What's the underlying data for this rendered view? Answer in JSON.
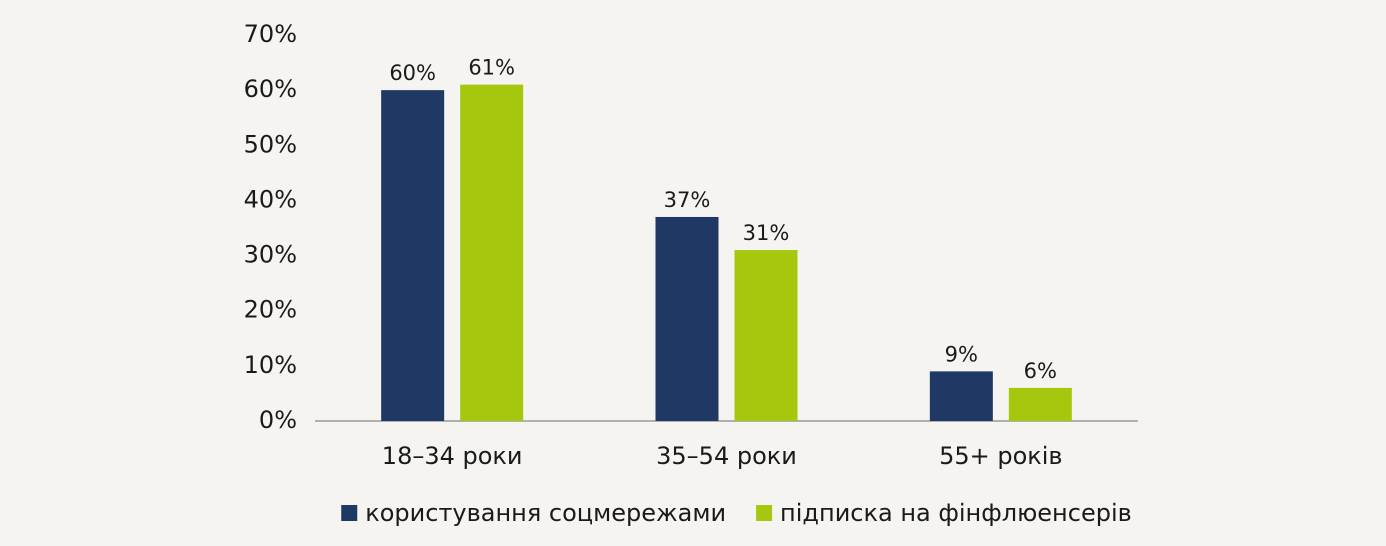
{
  "chart_data": {
    "type": "bar",
    "categories": [
      "18–34 роки",
      "35–54 роки",
      "55+ років"
    ],
    "series": [
      {
        "name": "користування соцмережами",
        "color": "#1f3864",
        "values": [
          60,
          37,
          9
        ],
        "value_labels": [
          "60%",
          "37%",
          "9%"
        ]
      },
      {
        "name": "підписка на фінфлюенсерів",
        "color": "#a5c80f",
        "values": [
          61,
          31,
          6
        ],
        "value_labels": [
          "61%",
          "31%",
          "6%"
        ]
      }
    ],
    "ylim": [
      0,
      70
    ],
    "yticks": [
      {
        "value": 0,
        "label": "0%"
      },
      {
        "value": 10,
        "label": "10%"
      },
      {
        "value": 20,
        "label": "20%"
      },
      {
        "value": 30,
        "label": "30%"
      },
      {
        "value": 40,
        "label": "40%"
      },
      {
        "value": 50,
        "label": "50%"
      },
      {
        "value": 60,
        "label": "60%"
      },
      {
        "value": 70,
        "label": "70%"
      }
    ],
    "grid": false,
    "legend": "bottom"
  }
}
